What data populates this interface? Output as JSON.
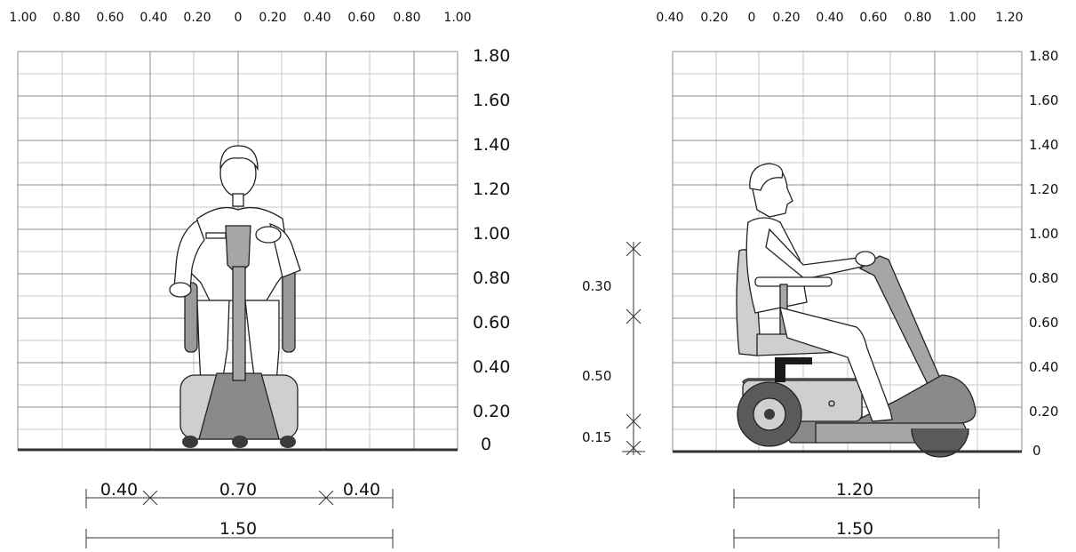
{
  "front_view": {
    "x_ticks": [
      "1.00",
      "0.80",
      "0.60",
      "0.40",
      "0.20",
      "0",
      "0.20",
      "0.40",
      "0.60",
      "0.80",
      "1.00"
    ],
    "y_ticks": [
      "1.80",
      "1.60",
      "1.40",
      "1.20",
      "1.00",
      "0.80",
      "0.60",
      "0.40",
      "0.20",
      "0"
    ],
    "dimensions": {
      "left_clearance": "0.40",
      "scooter_width": "0.70",
      "right_clearance": "0.40",
      "total_width": "1.50"
    }
  },
  "side_view": {
    "x_ticks": [
      "0.40",
      "0.20",
      "0",
      "0.20",
      "0.40",
      "0.60",
      "0.80",
      "1.00",
      "1.20"
    ],
    "y_ticks": [
      "1.80",
      "1.60",
      "1.40",
      "1.20",
      "1.00",
      "0.80",
      "0.60",
      "0.40",
      "0.20",
      "0"
    ],
    "dimensions": {
      "upper_height": "0.30",
      "seat_height": "0.50",
      "deck_height": "0.15",
      "scooter_length": "1.20",
      "total_length": "1.50"
    }
  },
  "colors": {
    "body_dark": "#8a8a8a",
    "body_mid": "#a6a6a6",
    "body_light": "#cfcfcf",
    "wheel_dark": "#3a3a3a",
    "grid_major": "#8c8c8c",
    "grid_minor": "#c8c8c8"
  }
}
